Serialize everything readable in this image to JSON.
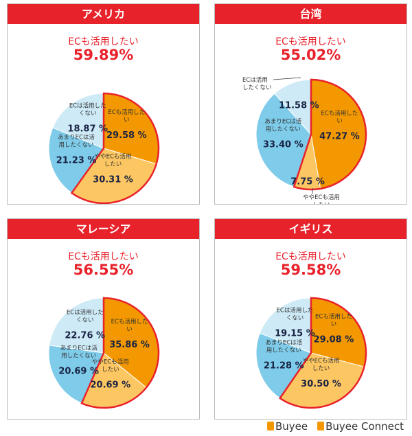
{
  "colors": {
    "accent": "#e8222b",
    "slice1": "#f39800",
    "slice2": "#fcc662",
    "slice3": "#7ecbea",
    "slice4": "#cdeaf6"
  },
  "chart_data": [
    {
      "type": "pie",
      "title": "アメリカ",
      "subtitle": "ECも活用したい",
      "headline": "59.89%",
      "labels": [
        "ECも活用したい",
        "ややECも活用したい",
        "あまりECは活用したくない",
        "ECは活用したくない"
      ],
      "values": [
        29.58,
        30.31,
        21.23,
        18.87
      ]
    },
    {
      "type": "pie",
      "title": "台湾",
      "subtitle": "ECも活用したい",
      "headline": "55.02%",
      "labels": [
        "ECも活用したい",
        "ややECも活用したい",
        "あまりECは活用したくない",
        "ECは活用したくない"
      ],
      "values": [
        47.27,
        7.75,
        33.4,
        11.58
      ]
    },
    {
      "type": "pie",
      "title": "マレーシア",
      "subtitle": "ECも活用したい",
      "headline": "56.55%",
      "labels": [
        "ECも活用したい",
        "ややECも活用したい",
        "あまりECは活用したくない",
        "ECは活用したくない"
      ],
      "values": [
        35.86,
        20.69,
        20.69,
        22.76
      ]
    },
    {
      "type": "pie",
      "title": "イギリス",
      "subtitle": "ECも活用したい",
      "headline": "59.58%",
      "labels": [
        "ECも活用したい",
        "ややECも活用したい",
        "あまりECは活用したくない",
        "ECは活用したくない"
      ],
      "values": [
        29.08,
        30.5,
        21.28,
        19.15
      ]
    }
  ],
  "footer": {
    "logo1": "Buyee",
    "logo2": "Buyee Connect"
  }
}
